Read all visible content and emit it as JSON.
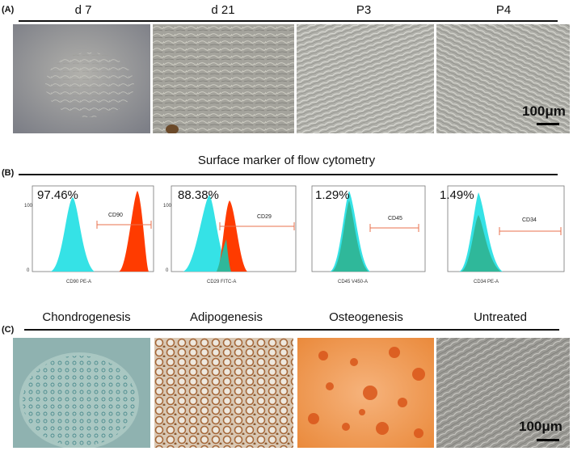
{
  "panelA": {
    "label": "(A)",
    "columns": [
      "d 7",
      "d 21",
      "P3",
      "P4"
    ],
    "scale_bar": "100μm"
  },
  "panelB": {
    "label": "(B)",
    "title": "Surface marker of flow cytometry",
    "plots": [
      {
        "percent": "97.46%",
        "marker": "CD90",
        "xaxis": "CD90 PE-A",
        "positive_fraction": 0.9746
      },
      {
        "percent": "88.38%",
        "marker": "CD29",
        "xaxis": "CD29 FITC-A",
        "positive_fraction": 0.8838
      },
      {
        "percent": "1.29%",
        "marker": "CD45",
        "xaxis": "CD45 V450-A",
        "positive_fraction": 0.0129
      },
      {
        "percent": "1.49%",
        "marker": "CD34",
        "xaxis": "CD34 PE-A",
        "positive_fraction": 0.0149
      }
    ],
    "yticks": [
      "0",
      "100"
    ],
    "colors": {
      "control": "#35e2e6",
      "sample": "#ff3b00",
      "overlap": "#2fb89a",
      "gate": "#e8704e"
    }
  },
  "panelC": {
    "label": "(C)",
    "columns": [
      "Chondrogenesis",
      "Adipogenesis",
      "Osteogenesis",
      "Untreated"
    ],
    "scale_bar": "100μm"
  }
}
